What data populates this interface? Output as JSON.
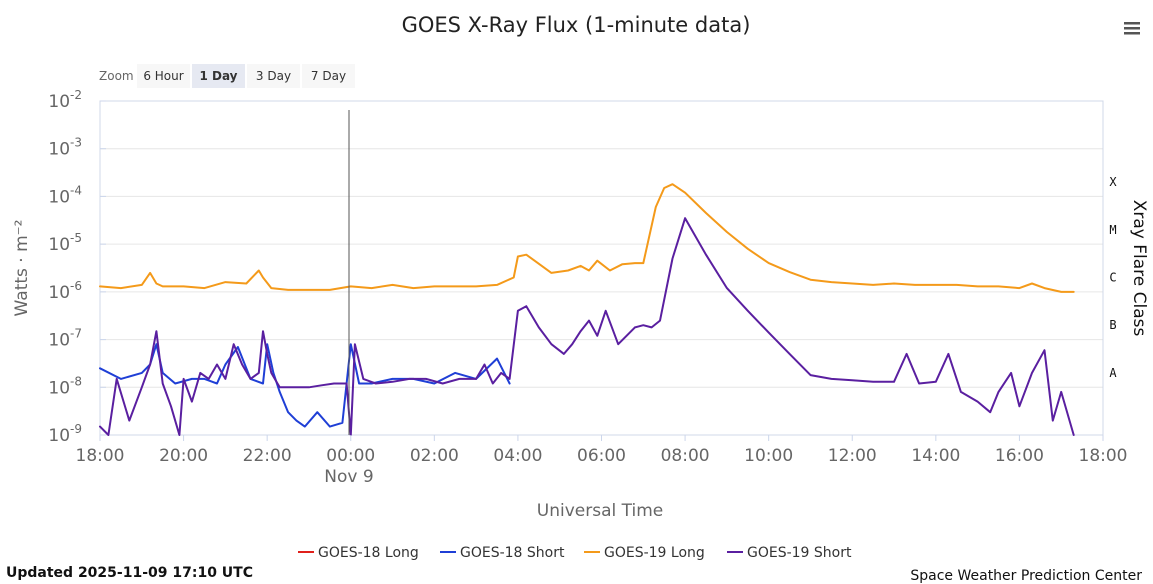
{
  "chart_data": {
    "type": "line",
    "title": "GOES X-Ray Flux (1-minute data)",
    "xlabel": "Universal Time",
    "ylabel": "Watts · m⁻²",
    "y2label": "Xray Flare Class",
    "yscale": "log",
    "ylim": [
      1e-09,
      0.01
    ],
    "xlim": [
      "2025-11-08T18:00Z",
      "2025-11-09T18:00Z"
    ],
    "x_ticks": [
      "18:00",
      "20:00",
      "22:00",
      "00:00",
      "02:00",
      "04:00",
      "06:00",
      "08:00",
      "10:00",
      "12:00",
      "14:00",
      "16:00",
      "18:00"
    ],
    "x_tick_hours": [
      18,
      20,
      22,
      24,
      26,
      28,
      30,
      32,
      34,
      36,
      38,
      40,
      42
    ],
    "date_label": "Nov 9",
    "y_ticks": [
      {
        "base": "10",
        "exp": "-2",
        "value": 0.01
      },
      {
        "base": "10",
        "exp": "-3",
        "value": 0.001
      },
      {
        "base": "10",
        "exp": "-4",
        "value": 0.0001
      },
      {
        "base": "10",
        "exp": "-5",
        "value": 1e-05
      },
      {
        "base": "10",
        "exp": "-6",
        "value": 1e-06
      },
      {
        "base": "10",
        "exp": "-7",
        "value": 1e-07
      },
      {
        "base": "10",
        "exp": "-8",
        "value": 1e-08
      },
      {
        "base": "10",
        "exp": "-9",
        "value": 1e-09
      }
    ],
    "flare_classes": [
      {
        "label": "X",
        "value": 0.0002
      },
      {
        "label": "M",
        "value": 2e-05
      },
      {
        "label": "C",
        "value": 2e-06
      },
      {
        "label": "B",
        "value": 2e-07
      },
      {
        "label": "A",
        "value": 2e-08
      }
    ],
    "grid": true,
    "legend_position": "bottom",
    "series": [
      {
        "name": "GOES-18 Long",
        "color": "#e0201b",
        "x": [],
        "y": []
      },
      {
        "name": "GOES-18 Short",
        "color": "#1f3fd6",
        "x": [
          18.0,
          18.5,
          19.0,
          19.2,
          19.35,
          19.5,
          19.8,
          20.2,
          20.5,
          20.8,
          21.0,
          21.3,
          21.6,
          21.9,
          22.0,
          22.15,
          22.3,
          22.5,
          22.7,
          22.9,
          23.2,
          23.5,
          23.8,
          24.0,
          24.2,
          24.5,
          25.0,
          25.5,
          26.0,
          26.5,
          27.0,
          27.5,
          27.8
        ],
        "y": [
          2.5e-08,
          1.5e-08,
          2e-08,
          3e-08,
          8e-08,
          2e-08,
          1.2e-08,
          1.5e-08,
          1.5e-08,
          1.2e-08,
          3e-08,
          7e-08,
          1.5e-08,
          1.2e-08,
          8e-08,
          2e-08,
          8e-09,
          3e-09,
          2e-09,
          1.5e-09,
          3e-09,
          1.5e-09,
          1.8e-09,
          8e-08,
          1.2e-08,
          1.2e-08,
          1.5e-08,
          1.5e-08,
          1.2e-08,
          2e-08,
          1.5e-08,
          4e-08,
          1.2e-08
        ]
      },
      {
        "name": "GOES-19 Long",
        "color": "#f49a1a",
        "x": [
          18.0,
          18.5,
          19.0,
          19.2,
          19.35,
          19.5,
          20.0,
          20.5,
          21.0,
          21.5,
          21.8,
          21.9,
          22.1,
          22.5,
          23.0,
          23.5,
          24.0,
          24.5,
          25.0,
          25.5,
          26.0,
          26.5,
          27.0,
          27.5,
          27.9,
          28.0,
          28.2,
          28.4,
          28.8,
          29.2,
          29.5,
          29.7,
          29.9,
          30.2,
          30.5,
          30.8,
          31.0,
          31.3,
          31.5,
          31.7,
          32.0,
          32.5,
          33.0,
          33.5,
          34.0,
          34.5,
          35.0,
          35.5,
          36.0,
          36.5,
          37.0,
          37.5,
          38.0,
          38.5,
          39.0,
          39.5,
          40.0,
          40.3,
          40.6,
          41.0,
          41.3
        ],
        "y": [
          1.3e-06,
          1.2e-06,
          1.4e-06,
          2.5e-06,
          1.5e-06,
          1.3e-06,
          1.3e-06,
          1.2e-06,
          1.6e-06,
          1.5e-06,
          2.8e-06,
          2e-06,
          1.2e-06,
          1.1e-06,
          1.1e-06,
          1.1e-06,
          1.3e-06,
          1.2e-06,
          1.4e-06,
          1.2e-06,
          1.3e-06,
          1.3e-06,
          1.3e-06,
          1.4e-06,
          2e-06,
          5.5e-06,
          6e-06,
          4.5e-06,
          2.5e-06,
          2.8e-06,
          3.5e-06,
          2.8e-06,
          4.5e-06,
          2.8e-06,
          3.8e-06,
          4e-06,
          4e-06,
          6e-05,
          0.00015,
          0.00018,
          0.00012,
          4.5e-05,
          1.8e-05,
          8e-06,
          4e-06,
          2.6e-06,
          1.8e-06,
          1.6e-06,
          1.5e-06,
          1.4e-06,
          1.5e-06,
          1.4e-06,
          1.4e-06,
          1.4e-06,
          1.3e-06,
          1.3e-06,
          1.2e-06,
          1.5e-06,
          1.2e-06,
          1e-06,
          1e-06
        ]
      },
      {
        "name": "GOES-19 Short",
        "color": "#5a1fa0",
        "x": [
          18.0,
          18.2,
          18.4,
          18.7,
          19.0,
          19.2,
          19.35,
          19.5,
          19.7,
          19.9,
          20.0,
          20.2,
          20.4,
          20.6,
          20.8,
          21.0,
          21.2,
          21.4,
          21.6,
          21.8,
          21.9,
          22.0,
          22.1,
          22.3,
          22.5,
          22.8,
          23.0,
          23.3,
          23.6,
          23.9,
          24.0,
          24.1,
          24.3,
          24.6,
          25.0,
          25.4,
          25.8,
          26.2,
          26.6,
          27.0,
          27.2,
          27.4,
          27.6,
          27.8,
          28.0,
          28.2,
          28.5,
          28.8,
          29.1,
          29.3,
          29.5,
          29.7,
          29.9,
          30.1,
          30.4,
          30.8,
          31.0,
          31.2,
          31.4,
          31.7,
          32.0,
          32.5,
          33.0,
          33.5,
          34.0,
          34.5,
          35.0,
          35.5,
          36.0,
          36.5,
          37.0,
          37.3,
          37.6,
          38.0,
          38.3,
          38.6,
          39.0,
          39.3,
          39.5,
          39.8,
          40.0,
          40.3,
          40.6,
          40.8,
          41.0,
          41.3
        ],
        "y": [
          1.5e-09,
          1e-09,
          1.5e-08,
          2e-09,
          1e-08,
          3e-08,
          1.5e-07,
          1.2e-08,
          4e-09,
          1e-09,
          1.5e-08,
          5e-09,
          2e-08,
          1.5e-08,
          3e-08,
          1.5e-08,
          8e-08,
          3e-08,
          1.5e-08,
          2e-08,
          1.5e-07,
          5e-08,
          2e-08,
          1e-08,
          1e-08,
          1e-08,
          1e-08,
          1.1e-08,
          1.2e-08,
          1.2e-08,
          1e-09,
          8e-08,
          1.5e-08,
          1.2e-08,
          1.3e-08,
          1.5e-08,
          1.5e-08,
          1.2e-08,
          1.5e-08,
          1.5e-08,
          3e-08,
          1.2e-08,
          2e-08,
          1.5e-08,
          4e-07,
          5e-07,
          1.8e-07,
          8e-08,
          5e-08,
          8e-08,
          1.5e-07,
          2.5e-07,
          1.2e-07,
          4e-07,
          8e-08,
          1.8e-07,
          2e-07,
          1.8e-07,
          2.5e-07,
          5e-06,
          3.5e-05,
          6e-06,
          1.2e-06,
          4e-07,
          1.4e-07,
          5e-08,
          1.8e-08,
          1.5e-08,
          1.4e-08,
          1.3e-08,
          1.3e-08,
          5e-08,
          1.2e-08,
          1.3e-08,
          5e-08,
          8e-09,
          5e-09,
          3e-09,
          8e-09,
          2e-08,
          4e-09,
          2e-08,
          6e-08,
          2e-09,
          8e-09,
          1e-09
        ]
      }
    ]
  },
  "zoom": {
    "label": "Zoom",
    "buttons": [
      "6 Hour",
      "1 Day",
      "3 Day",
      "7 Day"
    ],
    "selected": "1 Day"
  },
  "footer": {
    "updated": "Updated 2025-11-09 17:10 UTC",
    "credit": "Space Weather Prediction Center"
  },
  "menu_icon": "hamburger-menu-icon"
}
